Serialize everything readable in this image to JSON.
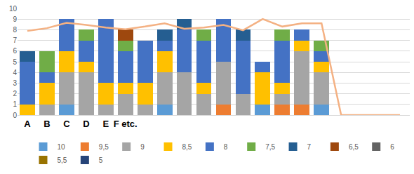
{
  "chart_data": {
    "type": "bar",
    "stacked": true,
    "grid": true,
    "legend": "bottom",
    "categories": [
      "A",
      "B",
      "C",
      "D",
      "E",
      "F etc.",
      null,
      null,
      null,
      null,
      null,
      null,
      null,
      null,
      null,
      null,
      null,
      null,
      null,
      null
    ],
    "ylim": [
      0,
      10
    ],
    "yticks": [
      0,
      1,
      2,
      3,
      4,
      5,
      6,
      7,
      8,
      9,
      10
    ],
    "series": [
      {
        "name": "10",
        "color": "#5B9BD5",
        "values": [
          0,
          0,
          1,
          0,
          0,
          0,
          0,
          1,
          0,
          0,
          0,
          0,
          1,
          0,
          0,
          1,
          0,
          0,
          0,
          0
        ]
      },
      {
        "name": "9,5",
        "color": "#ED7D31",
        "values": [
          0,
          0,
          0,
          0,
          0,
          0,
          0,
          0,
          0,
          0,
          1,
          0,
          0,
          1,
          1,
          0,
          0,
          0,
          0,
          0
        ]
      },
      {
        "name": "9",
        "color": "#A5A5A5",
        "values": [
          0,
          1,
          3,
          4,
          1,
          2,
          1,
          3,
          4,
          2,
          4,
          2,
          0,
          1,
          5,
          3,
          0,
          0,
          0,
          0
        ]
      },
      {
        "name": "8,5",
        "color": "#FFC000",
        "values": [
          1,
          2,
          2,
          1,
          2,
          1,
          2,
          2,
          0,
          1,
          0,
          0,
          3,
          1,
          1,
          1,
          0,
          0,
          0,
          0
        ]
      },
      {
        "name": "8",
        "color": "#4472C4",
        "values": [
          4,
          1,
          3,
          2,
          6,
          3,
          4,
          1,
          4,
          4,
          4,
          5,
          1,
          4,
          1,
          1,
          0,
          0,
          0,
          0
        ]
      },
      {
        "name": "7,5",
        "color": "#70AD47",
        "values": [
          0,
          2,
          0,
          1,
          0,
          1,
          0,
          0,
          0,
          1,
          0,
          0,
          0,
          1,
          0,
          1,
          0,
          0,
          0,
          0
        ]
      },
      {
        "name": "7",
        "color": "#255E91",
        "values": [
          1,
          0,
          0,
          0,
          0,
          0,
          0,
          1,
          1,
          0,
          0,
          1,
          0,
          0,
          0,
          0,
          0,
          0,
          0,
          0
        ]
      },
      {
        "name": "6,5",
        "color": "#9E480E",
        "values": [
          0,
          0,
          0,
          0,
          0,
          1,
          0,
          0,
          0,
          0,
          0,
          0,
          0,
          0,
          0,
          0,
          0,
          0,
          0,
          0
        ]
      },
      {
        "name": "6",
        "color": "#636363",
        "values": [
          0,
          0,
          0,
          0,
          0,
          0,
          0,
          0,
          0,
          0,
          0,
          0,
          0,
          0,
          0,
          0,
          0,
          0,
          0,
          0
        ]
      },
      {
        "name": "5,5",
        "color": "#997300",
        "values": [
          0,
          0,
          0,
          0,
          0,
          0,
          0,
          0,
          0,
          0,
          0,
          0,
          0,
          0,
          0,
          0,
          0,
          0,
          0,
          0
        ]
      },
      {
        "name": "5",
        "color": "#264478",
        "values": [
          0,
          0,
          0,
          0,
          0,
          0,
          0,
          0,
          0,
          0,
          0,
          0,
          0,
          0,
          0,
          0,
          0,
          0,
          0,
          0
        ]
      },
      {
        "type": "line",
        "color": "#F4B183",
        "values": [
          7.9,
          8.15,
          8.65,
          8.45,
          8.2,
          8.05,
          8.3,
          8.6,
          8.1,
          8.2,
          8.45,
          7.95,
          9.0,
          8.3,
          8.6,
          8.6,
          0,
          0,
          0,
          0
        ]
      }
    ]
  }
}
